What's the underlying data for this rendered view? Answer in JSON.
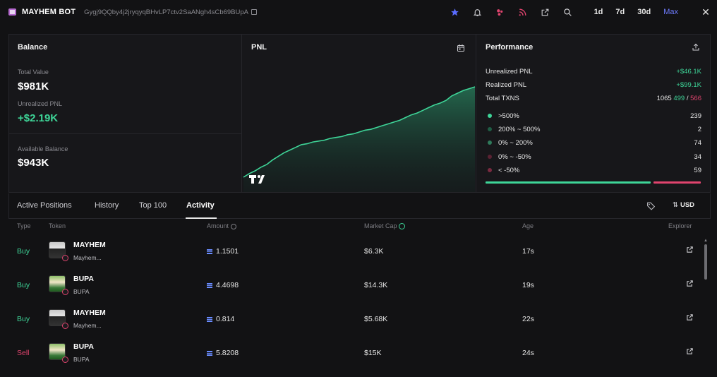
{
  "header": {
    "app_title": "MAYHEM BOT",
    "address": "Gygj9QQby4j2jryqyqBHvLP7ctv2SaANgh4sCb69BUpA",
    "ranges": [
      "1d",
      "7d",
      "30d",
      "Max"
    ],
    "active_range": "Max",
    "icons": [
      "star-icon",
      "bell-icon",
      "bubbles-icon",
      "rss-icon",
      "external-link-icon",
      "search-icon",
      "close-icon"
    ]
  },
  "balance": {
    "title": "Balance",
    "total_value_label": "Total Value",
    "total_value": "$981K",
    "unrealized_label": "Unrealized PNL",
    "unrealized_value": "+$2.19K",
    "available_label": "Available Balance",
    "available_value": "$943K"
  },
  "pnl": {
    "title": "PNL",
    "chart_points": [
      0.0,
      0.04,
      0.07,
      0.11,
      0.14,
      0.19,
      0.23,
      0.27,
      0.3,
      0.33,
      0.36,
      0.37,
      0.39,
      0.4,
      0.41,
      0.43,
      0.44,
      0.45,
      0.47,
      0.48,
      0.5,
      0.52,
      0.53,
      0.55,
      0.57,
      0.59,
      0.61,
      0.63,
      0.66,
      0.69,
      0.71,
      0.74,
      0.77,
      0.8,
      0.82,
      0.85,
      0.9,
      0.93,
      0.96,
      0.98,
      1.0
    ]
  },
  "performance": {
    "title": "Performance",
    "unrealized_label": "Unrealized PNL",
    "unrealized_value": "+$46.1K",
    "realized_label": "Realized PNL",
    "realized_value": "+$99.1K",
    "txns_label": "Total TXNS",
    "txns_total": "1065",
    "txns_buy": "499",
    "txns_sep": "/",
    "txns_sell": "566",
    "buckets": [
      {
        "label": ">500%",
        "value": "239",
        "color": "#3ed598"
      },
      {
        "label": "200% ~ 500%",
        "value": "2",
        "color": "#1f5d45"
      },
      {
        "label": "0% ~ 200%",
        "value": "74",
        "color": "#2f7a5b"
      },
      {
        "label": "0% ~ -50%",
        "value": "34",
        "color": "#5a2233"
      },
      {
        "label": "< -50%",
        "value": "59",
        "color": "#7a2a40"
      }
    ],
    "win_ratio": 0.78
  },
  "tabs": {
    "items": [
      "Active Positions",
      "History",
      "Top 100",
      "Activity"
    ],
    "active": "Activity",
    "currency": "USD"
  },
  "table": {
    "columns": [
      "Type",
      "Token",
      "Amount",
      "Market Cap",
      "Age",
      "Explorer"
    ],
    "rows": [
      {
        "type": "Buy",
        "token": "MAYHEM",
        "sub": "Mayhem...",
        "amount": "1.1501",
        "mcap": "$6.3K",
        "age": "17s"
      },
      {
        "type": "Buy",
        "token": "BUPA",
        "sub": "BUPA",
        "amount": "4.4698",
        "mcap": "$14.3K",
        "age": "19s"
      },
      {
        "type": "Buy",
        "token": "MAYHEM",
        "sub": "Mayhem...",
        "amount": "0.814",
        "mcap": "$5.68K",
        "age": "22s"
      },
      {
        "type": "Sell",
        "token": "BUPA",
        "sub": "BUPA",
        "amount": "5.8208",
        "mcap": "$15K",
        "age": "24s"
      }
    ]
  },
  "colors": {
    "buy": "#3ed598",
    "sell": "#e0446e",
    "accent": "#6f7cff"
  }
}
